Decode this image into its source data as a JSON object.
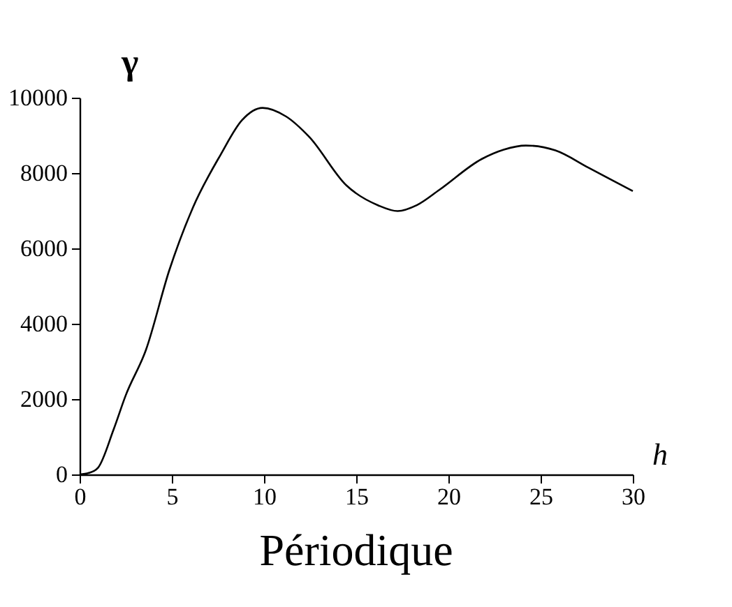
{
  "chart_data": {
    "type": "line",
    "title": "Périodique",
    "xlabel": "h",
    "ylabel": "γ",
    "x": [
      0,
      0.5,
      1,
      1.84,
      2.5,
      3.6,
      4.87,
      6.14,
      7.65,
      8.8,
      9.92,
      11.2,
      12.45,
      14.47,
      16.2,
      17.25,
      18.3,
      19.5,
      21.8,
      23,
      24.2,
      25.8,
      27.6,
      30
    ],
    "series": [
      {
        "color": "#000000",
        "values": [
          0,
          40,
          180,
          1190,
          2100,
          3310,
          5430,
          7080,
          8490,
          9400,
          9730,
          9500,
          8960,
          7670,
          7140,
          6990,
          7150,
          7550,
          8370,
          8620,
          8730,
          8600,
          8140,
          7520
        ]
      }
    ],
    "xlim": [
      0,
      30
    ],
    "ylim": [
      0,
      10000
    ],
    "xticks": [
      0,
      5,
      10,
      15,
      20,
      25,
      30
    ],
    "yticks": [
      0,
      2000,
      4000,
      6000,
      8000,
      10000
    ],
    "grid": false,
    "legend": false,
    "marker": "none",
    "line_style": "solid"
  }
}
